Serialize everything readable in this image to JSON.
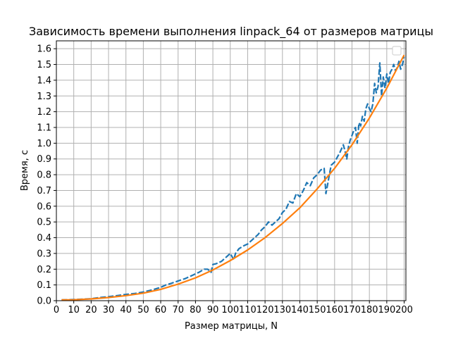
{
  "chart_data": {
    "type": "line",
    "title": "Зависимость времени выполнения linpack_64 от размеров матрицы",
    "xlabel": "Размер матрицы, N",
    "ylabel": "Время, с",
    "xlim": [
      0,
      201
    ],
    "ylim": [
      0,
      1.65
    ],
    "xticks": [
      0,
      10,
      20,
      30,
      40,
      50,
      60,
      70,
      80,
      90,
      100,
      110,
      120,
      130,
      140,
      150,
      160,
      170,
      180,
      190,
      200
    ],
    "xtick_labels": [
      "0",
      "10",
      "20",
      "30",
      "40",
      "50",
      "60",
      "70",
      "80",
      "90",
      "100",
      "110",
      "120",
      "130",
      "140",
      "150",
      "160",
      "170",
      "180",
      "190",
      "200"
    ],
    "yticks": [
      0.0,
      0.1,
      0.2,
      0.3,
      0.4,
      0.5,
      0.6,
      0.7,
      0.8,
      0.9,
      1.0,
      1.1,
      1.2,
      1.3,
      1.4,
      1.5,
      1.6
    ],
    "ytick_labels": [
      "0.0",
      "0.1",
      "0.2",
      "0.3",
      "0.4",
      "0.5",
      "0.6",
      "0.7",
      "0.8",
      "0.9",
      "1.0",
      "1.1",
      "1.2",
      "1.3",
      "1.4",
      "1.5",
      "1.6"
    ],
    "grid": true,
    "legend": "upper right (empty)",
    "series": [
      {
        "style": "dashed",
        "color": "#1f77b4",
        "x": [
          3,
          10,
          20,
          25,
          30,
          35,
          40,
          45,
          50,
          55,
          60,
          63,
          66,
          70,
          74,
          78,
          82,
          85,
          87,
          89,
          90,
          92,
          95,
          98,
          100,
          102,
          103,
          105,
          108,
          110,
          113,
          116,
          118,
          120,
          122,
          124,
          126,
          128,
          130,
          132,
          134,
          136,
          138,
          140,
          142,
          144,
          146,
          148,
          150,
          152,
          154,
          155,
          156,
          157,
          158,
          160,
          161,
          163,
          165,
          166,
          167,
          168,
          169,
          170,
          171,
          172,
          173,
          174,
          175,
          176,
          177,
          178,
          179,
          180,
          181,
          182,
          183,
          184,
          185,
          186,
          187,
          188,
          189,
          190,
          191,
          192,
          193,
          194,
          195,
          196,
          197,
          198,
          199,
          200
        ],
        "y": [
          0.005,
          0.007,
          0.012,
          0.02,
          0.025,
          0.032,
          0.04,
          0.045,
          0.055,
          0.068,
          0.085,
          0.1,
          0.11,
          0.125,
          0.14,
          0.16,
          0.18,
          0.2,
          0.2,
          0.18,
          0.23,
          0.235,
          0.25,
          0.28,
          0.3,
          0.26,
          0.3,
          0.33,
          0.35,
          0.36,
          0.39,
          0.42,
          0.45,
          0.47,
          0.5,
          0.48,
          0.5,
          0.52,
          0.56,
          0.58,
          0.63,
          0.62,
          0.68,
          0.66,
          0.7,
          0.75,
          0.73,
          0.78,
          0.8,
          0.83,
          0.84,
          0.68,
          0.74,
          0.8,
          0.86,
          0.88,
          0.9,
          0.94,
          0.99,
          0.95,
          0.9,
          0.98,
          1.02,
          1.05,
          1.08,
          1.1,
          1.0,
          1.13,
          1.11,
          1.17,
          1.14,
          1.22,
          1.25,
          1.22,
          1.2,
          1.25,
          1.38,
          1.32,
          1.36,
          1.51,
          1.3,
          1.42,
          1.35,
          1.44,
          1.38,
          1.45,
          1.47,
          1.5,
          1.46,
          1.48,
          1.52,
          1.47,
          1.5,
          1.55
        ]
      },
      {
        "style": "solid",
        "color": "#ff7f0e",
        "x": [
          3,
          10,
          20,
          30,
          40,
          50,
          60,
          70,
          80,
          90,
          100,
          110,
          120,
          130,
          140,
          150,
          160,
          170,
          180,
          190,
          200
        ],
        "y": [
          0.005,
          0.006,
          0.011,
          0.02,
          0.032,
          0.048,
          0.072,
          0.105,
          0.145,
          0.195,
          0.255,
          0.322,
          0.4,
          0.49,
          0.59,
          0.71,
          0.84,
          0.99,
          1.16,
          1.35,
          1.56
        ]
      }
    ]
  }
}
